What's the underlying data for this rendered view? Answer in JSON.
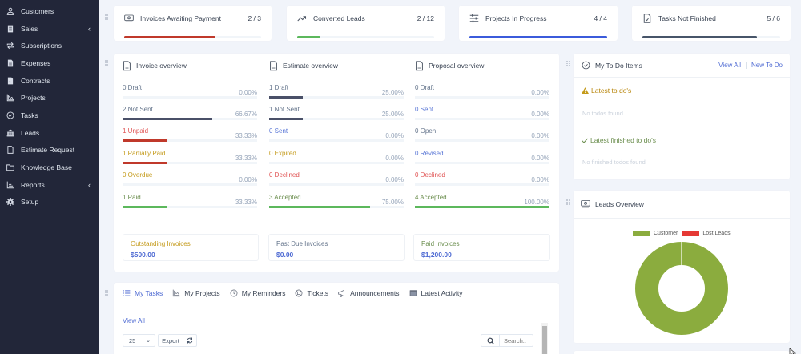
{
  "sidebar": {
    "items": [
      {
        "label": "Customers",
        "icon": "user-icon"
      },
      {
        "label": "Sales",
        "icon": "receipt-icon",
        "has_submenu": true
      },
      {
        "label": "Subscriptions",
        "icon": "repeat-icon"
      },
      {
        "label": "Expenses",
        "icon": "file-invoice-icon"
      },
      {
        "label": "Contracts",
        "icon": "contract-icon"
      },
      {
        "label": "Projects",
        "icon": "chart-area-icon"
      },
      {
        "label": "Tasks",
        "icon": "check-circle-icon"
      },
      {
        "label": "Leads",
        "icon": "building-icon"
      },
      {
        "label": "Estimate Request",
        "icon": "document-icon"
      },
      {
        "label": "Knowledge Base",
        "icon": "folder-icon"
      },
      {
        "label": "Reports",
        "icon": "bar-chart-icon",
        "has_submenu": true
      },
      {
        "label": "Setup",
        "icon": "gear-icon"
      }
    ],
    "submenu_glyph": "‹"
  },
  "stats": [
    {
      "label": "Invoices Awaiting Payment",
      "value": "2 / 3",
      "percent": 66.67,
      "color": "#c0392b",
      "icon": "money-icon"
    },
    {
      "label": "Converted Leads",
      "value": "2 / 12",
      "percent": 16.67,
      "color": "#5cb85c",
      "icon": "trending-up-icon"
    },
    {
      "label": "Projects In Progress",
      "value": "4 / 4",
      "percent": 100,
      "color": "#3b5bdb",
      "icon": "sliders-icon"
    },
    {
      "label": "Tasks Not Finished",
      "value": "5 / 6",
      "percent": 83.33,
      "color": "#475569",
      "icon": "file-check-icon"
    }
  ],
  "overview": {
    "invoice": {
      "title": "Invoice overview",
      "rows": [
        {
          "label": "0 Draft",
          "pct": "0.00%",
          "value": 0,
          "text_color": "#64748b",
          "bar_color": "#475569"
        },
        {
          "label": "2 Not Sent",
          "pct": "66.67%",
          "value": 66.67,
          "text_color": "#64748b",
          "bar_color": "#4a5068"
        },
        {
          "label": "1 Unpaid",
          "pct": "33.33%",
          "value": 33.33,
          "text_color": "#e05252",
          "bar_color": "#c0392b"
        },
        {
          "label": "1 Partially Paid",
          "pct": "33.33%",
          "value": 33.33,
          "text_color": "#c49a1a",
          "bar_color": "#c0392b"
        },
        {
          "label": "0 Overdue",
          "pct": "0.00%",
          "value": 0,
          "text_color": "#c49a1a",
          "bar_color": "#c49a1a"
        },
        {
          "label": "1 Paid",
          "pct": "33.33%",
          "value": 33.33,
          "text_color": "#6b8e4e",
          "bar_color": "#5cb85c"
        }
      ]
    },
    "estimate": {
      "title": "Estimate overview",
      "rows": [
        {
          "label": "1 Draft",
          "pct": "25.00%",
          "value": 25,
          "text_color": "#64748b",
          "bar_color": "#4a5068"
        },
        {
          "label": "1 Not Sent",
          "pct": "25.00%",
          "value": 25,
          "text_color": "#64748b",
          "bar_color": "#4a5068"
        },
        {
          "label": "0 Sent",
          "pct": "0.00%",
          "value": 0,
          "text_color": "#5a77d6",
          "bar_color": "#5a77d6"
        },
        {
          "label": "0 Expired",
          "pct": "0.00%",
          "value": 0,
          "text_color": "#c49a1a",
          "bar_color": "#c49a1a"
        },
        {
          "label": "0 Declined",
          "pct": "0.00%",
          "value": 0,
          "text_color": "#e05252",
          "bar_color": "#c0392b"
        },
        {
          "label": "3 Accepted",
          "pct": "75.00%",
          "value": 75,
          "text_color": "#6b8e4e",
          "bar_color": "#5cb85c"
        }
      ]
    },
    "proposal": {
      "title": "Proposal overview",
      "rows": [
        {
          "label": "0 Draft",
          "pct": "0.00%",
          "value": 0,
          "text_color": "#64748b",
          "bar_color": "#4a5068"
        },
        {
          "label": "0 Sent",
          "pct": "0.00%",
          "value": 0,
          "text_color": "#5a77d6",
          "bar_color": "#5a77d6"
        },
        {
          "label": "0 Open",
          "pct": "0.00%",
          "value": 0,
          "text_color": "#64748b",
          "bar_color": "#4a5068"
        },
        {
          "label": "0 Revised",
          "pct": "0.00%",
          "value": 0,
          "text_color": "#5a77d6",
          "bar_color": "#5a77d6"
        },
        {
          "label": "0 Declined",
          "pct": "0.00%",
          "value": 0,
          "text_color": "#e05252",
          "bar_color": "#c0392b"
        },
        {
          "label": "4 Accepted",
          "pct": "100.00%",
          "value": 100,
          "text_color": "#6b8e4e",
          "bar_color": "#5cb85c"
        }
      ]
    },
    "summary": [
      {
        "label": "Outstanding Invoices",
        "value": "$500.00",
        "label_color": "#c49a1a"
      },
      {
        "label": "Past Due Invoices",
        "value": "$0.00",
        "label_color": "#64748b"
      },
      {
        "label": "Paid Invoices",
        "value": "$1,200.00",
        "label_color": "#6b8e4e"
      }
    ]
  },
  "tasks_panel": {
    "tabs": [
      {
        "label": "My Tasks",
        "icon": "list-icon",
        "active": true
      },
      {
        "label": "My Projects",
        "icon": "chart-area-icon"
      },
      {
        "label": "My Reminders",
        "icon": "clock-icon"
      },
      {
        "label": "Tickets",
        "icon": "lifebuoy-icon"
      },
      {
        "label": "Announcements",
        "icon": "megaphone-icon"
      },
      {
        "label": "Latest Activity",
        "icon": "window-icon"
      }
    ],
    "view_all": "View All",
    "page_size": "25",
    "export_label": "Export",
    "search_placeholder": "Search.."
  },
  "todo": {
    "title": "My To Do Items",
    "view_all": "View All",
    "new_todo": "New To Do",
    "latest_title": "Latest to do's",
    "latest_empty": "No todos found",
    "finished_title": "Latest finished to do's",
    "finished_empty": "No finished todos found"
  },
  "leads": {
    "title": "Leads Overview"
  },
  "chart_data": {
    "type": "pie",
    "title": "Leads Overview",
    "categories": [
      "Customer",
      "Lost Leads"
    ],
    "values": [
      2,
      0
    ],
    "colors": [
      "#8bac3e",
      "#e53935"
    ],
    "donut": true,
    "legend_position": "top"
  }
}
